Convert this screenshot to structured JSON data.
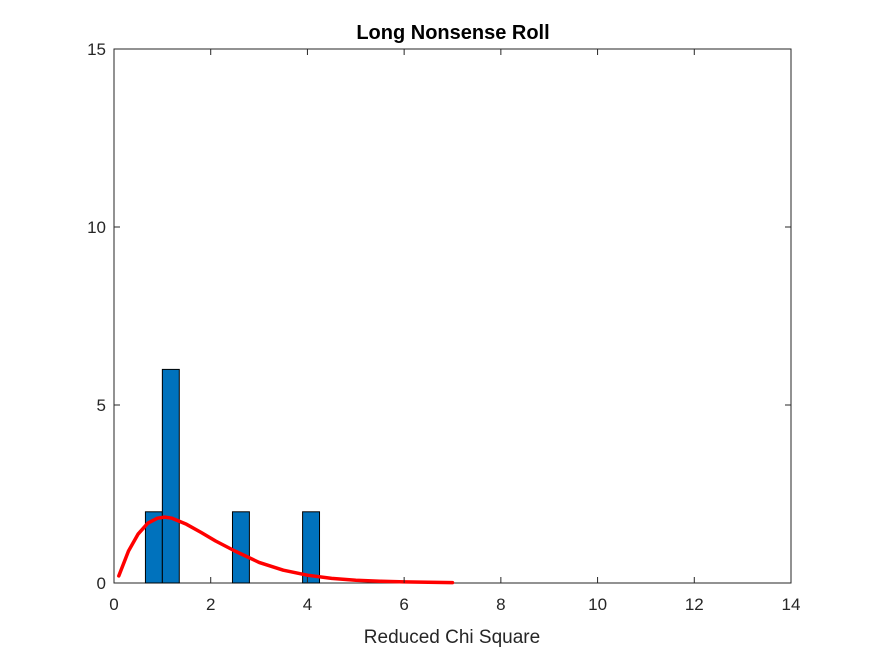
{
  "chart_data": {
    "type": "bar",
    "title": "Long Nonsense Roll",
    "xlabel": "Reduced Chi Square",
    "ylabel": "",
    "xlim": [
      0,
      14
    ],
    "ylim": [
      0,
      15
    ],
    "xticks": [
      0,
      2,
      4,
      6,
      8,
      10,
      12,
      14
    ],
    "yticks": [
      0,
      5,
      10,
      15
    ],
    "grid": false,
    "bin_width": 0.35,
    "histogram": {
      "name": "",
      "color": "#0072BD",
      "bins": [
        {
          "x_start": 0.65,
          "x_end": 1.0,
          "count": 2
        },
        {
          "x_start": 1.0,
          "x_end": 1.35,
          "count": 6
        },
        {
          "x_start": 2.45,
          "x_end": 2.8,
          "count": 2
        },
        {
          "x_start": 3.9,
          "x_end": 4.25,
          "count": 2
        }
      ]
    },
    "fit_curve": {
      "name": "",
      "color": "#FF0000",
      "x": [
        0.1,
        0.3,
        0.5,
        0.7,
        0.9,
        1.05,
        1.2,
        1.5,
        1.8,
        2.1,
        2.5,
        3.0,
        3.5,
        4.0,
        4.5,
        5.0,
        5.5,
        6.0,
        6.5,
        7.0
      ],
      "y": [
        0.2,
        0.9,
        1.38,
        1.68,
        1.82,
        1.85,
        1.82,
        1.65,
        1.42,
        1.18,
        0.9,
        0.58,
        0.36,
        0.22,
        0.13,
        0.08,
        0.05,
        0.03,
        0.02,
        0.01
      ]
    }
  }
}
